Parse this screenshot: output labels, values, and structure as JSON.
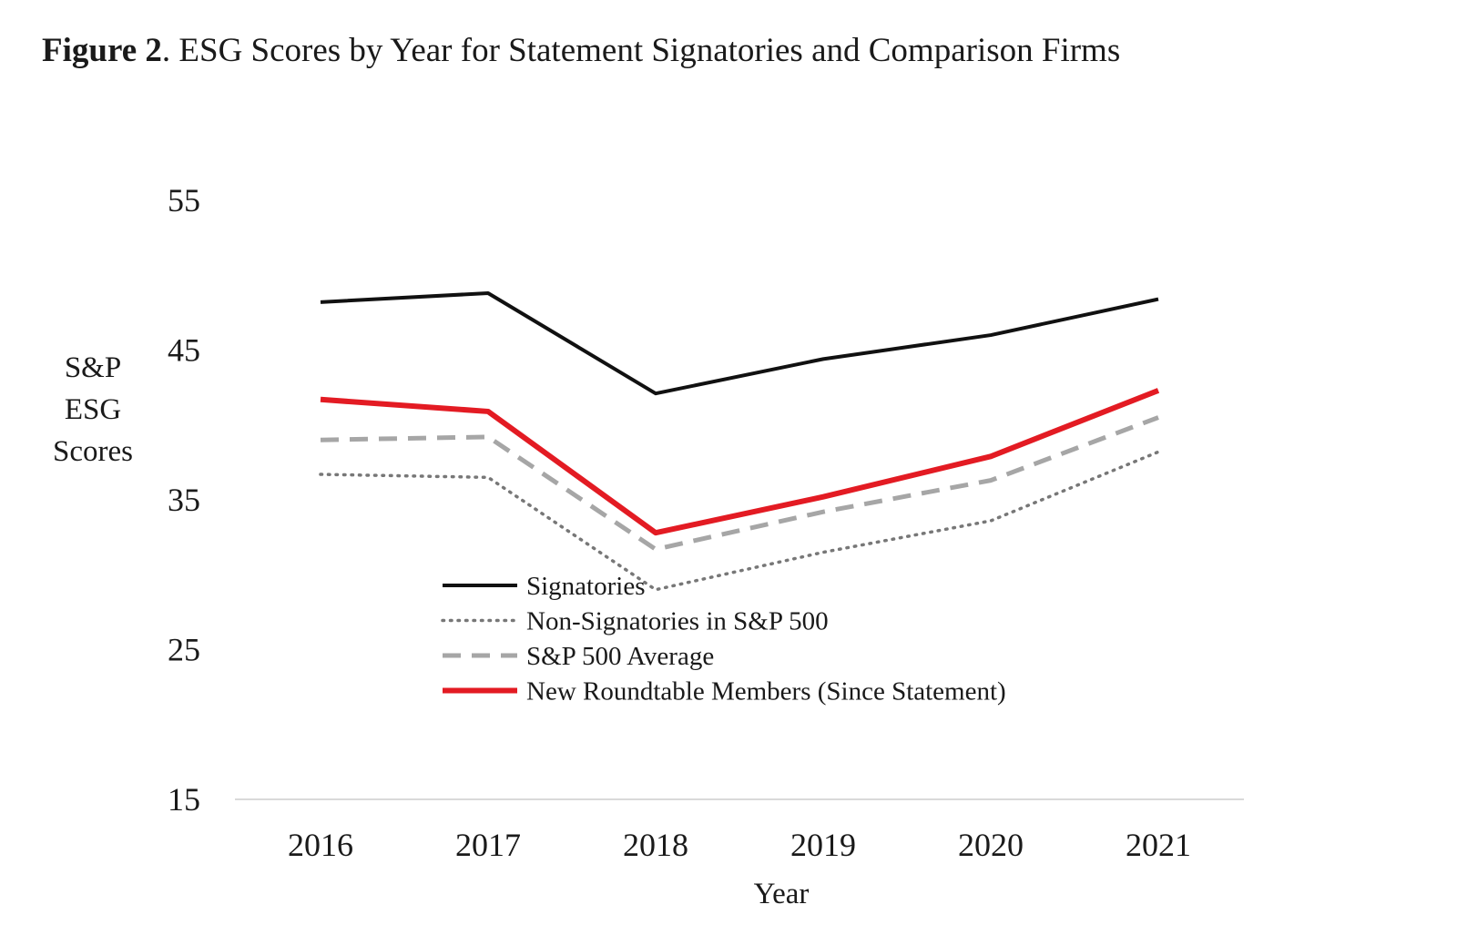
{
  "caption": {
    "label": "Figure 2",
    "text": ". ESG Scores by Year for Statement Signatories and Comparison Firms"
  },
  "chart_data": {
    "type": "line",
    "title": "",
    "xlabel": "Year",
    "ylabel_lines": [
      "S&P",
      "ESG",
      "Scores"
    ],
    "categories": [
      "2016",
      "2017",
      "2018",
      "2019",
      "2020",
      "2021"
    ],
    "y_ticks": [
      "55",
      "45",
      "35",
      "25",
      "15"
    ],
    "ylim": [
      15,
      55
    ],
    "grid": false,
    "legend_position": "center",
    "series": [
      {
        "name": "Signatories",
        "values": [
          48.2,
          48.8,
          42.1,
          44.4,
          46.0,
          48.4
        ],
        "color": "#111111",
        "style": "solid"
      },
      {
        "name": "Non-Signatories in S&P 500",
        "values": [
          36.7,
          36.5,
          29.0,
          31.5,
          33.6,
          38.2
        ],
        "color": "#777777",
        "style": "dotted"
      },
      {
        "name": "S&P 500 Average",
        "values": [
          39.0,
          39.2,
          31.7,
          34.2,
          36.3,
          40.5
        ],
        "color": "#a6a6a6",
        "style": "dashed"
      },
      {
        "name": "New Roundtable Members (Since Statement)",
        "values": [
          41.7,
          40.9,
          32.8,
          35.2,
          37.9,
          42.3
        ],
        "color": "#e31b23",
        "style": "solid-thick"
      }
    ]
  }
}
